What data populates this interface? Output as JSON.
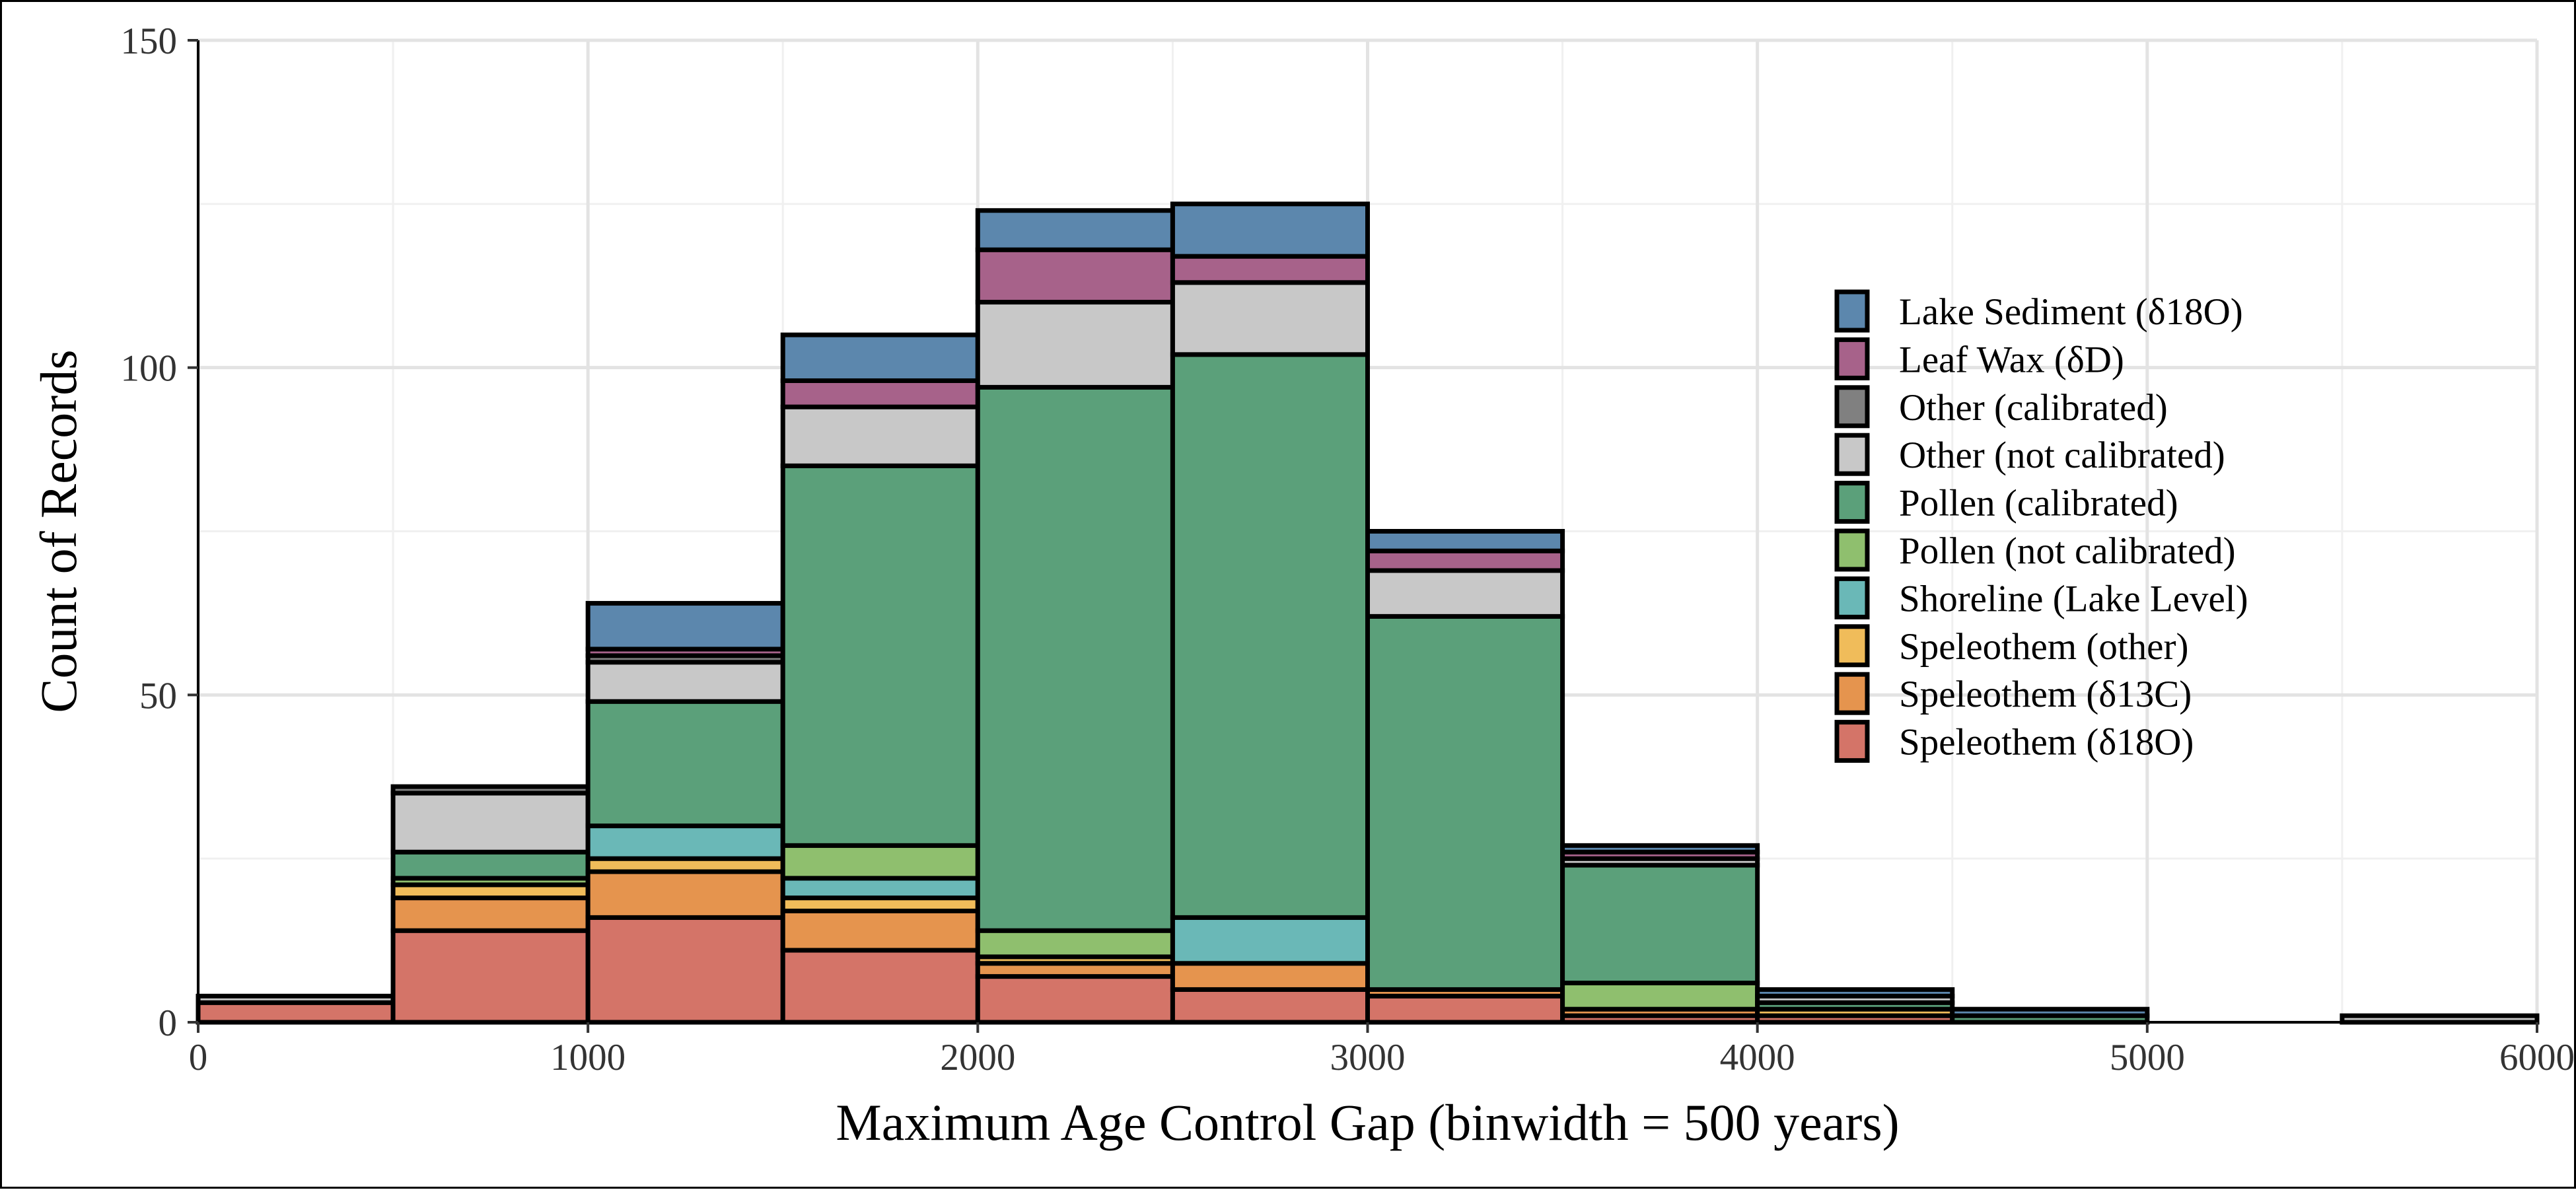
{
  "chart_data": {
    "type": "bar",
    "stacked": true,
    "title": "",
    "xlabel": "Maximum Age Control Gap (binwidth = 500 years)",
    "ylabel": "Count of Records",
    "xlim": [
      0,
      6000
    ],
    "ylim": [
      0,
      150
    ],
    "x_ticks": [
      "0",
      "1000",
      "2000",
      "3000",
      "4000",
      "5000",
      "6000"
    ],
    "y_ticks": [
      "0",
      "50",
      "100",
      "150"
    ],
    "grid": true,
    "legend_position": "right (inside plot)",
    "categories": [
      "0–500",
      "500–1000",
      "1000–1500",
      "1500–2000",
      "2000–2500",
      "2500–3000",
      "3000–3500",
      "3500–4000",
      "4000–4500",
      "4500–5000",
      "5000–5500",
      "5500–6000"
    ],
    "bin_starts": [
      0,
      500,
      1000,
      1500,
      2000,
      2500,
      3000,
      3500,
      4000,
      4500,
      5000,
      5500
    ],
    "binwidth": 500,
    "series": [
      {
        "name": "Speleothem (δ18O)",
        "color": "#D47468",
        "values": [
          3,
          14,
          16,
          11,
          7,
          5,
          4,
          1,
          1,
          0,
          0,
          0
        ]
      },
      {
        "name": "Speleothem (δ13C)",
        "color": "#E5944E",
        "values": [
          0,
          5,
          7,
          6,
          2,
          4,
          1,
          1,
          0,
          0,
          0,
          0
        ]
      },
      {
        "name": "Speleothem (other)",
        "color": "#F0BC5A",
        "values": [
          0,
          2,
          2,
          2,
          1,
          0,
          0,
          0,
          1,
          0,
          0,
          0
        ]
      },
      {
        "name": "Shoreline (Lake Level)",
        "color": "#6AB8B7",
        "values": [
          0,
          0,
          5,
          3,
          0,
          7,
          0,
          0,
          0,
          0,
          0,
          0
        ]
      },
      {
        "name": "Pollen (not calibrated)",
        "color": "#8FBF6E",
        "values": [
          0,
          1,
          0,
          5,
          4,
          0,
          0,
          4,
          0,
          0,
          0,
          0
        ]
      },
      {
        "name": "Pollen (calibrated)",
        "color": "#5BA07A",
        "values": [
          0,
          4,
          19,
          58,
          83,
          86,
          57,
          18,
          1,
          1,
          0,
          0
        ]
      },
      {
        "name": "Other (not calibrated)",
        "color": "#C8C8C8",
        "values": [
          1,
          9,
          6,
          9,
          13,
          11,
          7,
          1,
          1,
          0,
          0,
          1
        ]
      },
      {
        "name": "Other (calibrated)",
        "color": "#808080",
        "values": [
          0,
          1,
          1,
          0,
          0,
          0,
          0,
          0,
          0,
          0,
          0,
          0
        ]
      },
      {
        "name": "Leaf Wax (δD)",
        "color": "#A7628A",
        "values": [
          0,
          0,
          1,
          4,
          8,
          4,
          3,
          1,
          0,
          0,
          0,
          0
        ]
      },
      {
        "name": "Lake Sediment (δ18O)",
        "color": "#5C87AD",
        "values": [
          0,
          0,
          7,
          7,
          6,
          8,
          3,
          1,
          1,
          1,
          0,
          0
        ]
      }
    ],
    "legend": [
      {
        "label": "Lake Sediment (δ18O)",
        "color": "#5C87AD"
      },
      {
        "label": "Leaf Wax (δD)",
        "color": "#A7628A"
      },
      {
        "label": "Other (calibrated)",
        "color": "#808080"
      },
      {
        "label": "Other (not calibrated)",
        "color": "#C8C8C8"
      },
      {
        "label": "Pollen (calibrated)",
        "color": "#5BA07A"
      },
      {
        "label": "Pollen (not calibrated)",
        "color": "#8FBF6E"
      },
      {
        "label": "Shoreline (Lake Level)",
        "color": "#6AB8B7"
      },
      {
        "label": "Speleothem (other)",
        "color": "#F0BC5A"
      },
      {
        "label": "Speleothem (δ13C)",
        "color": "#E5944E"
      },
      {
        "label": "Speleothem (δ18O)",
        "color": "#D47468"
      }
    ]
  }
}
